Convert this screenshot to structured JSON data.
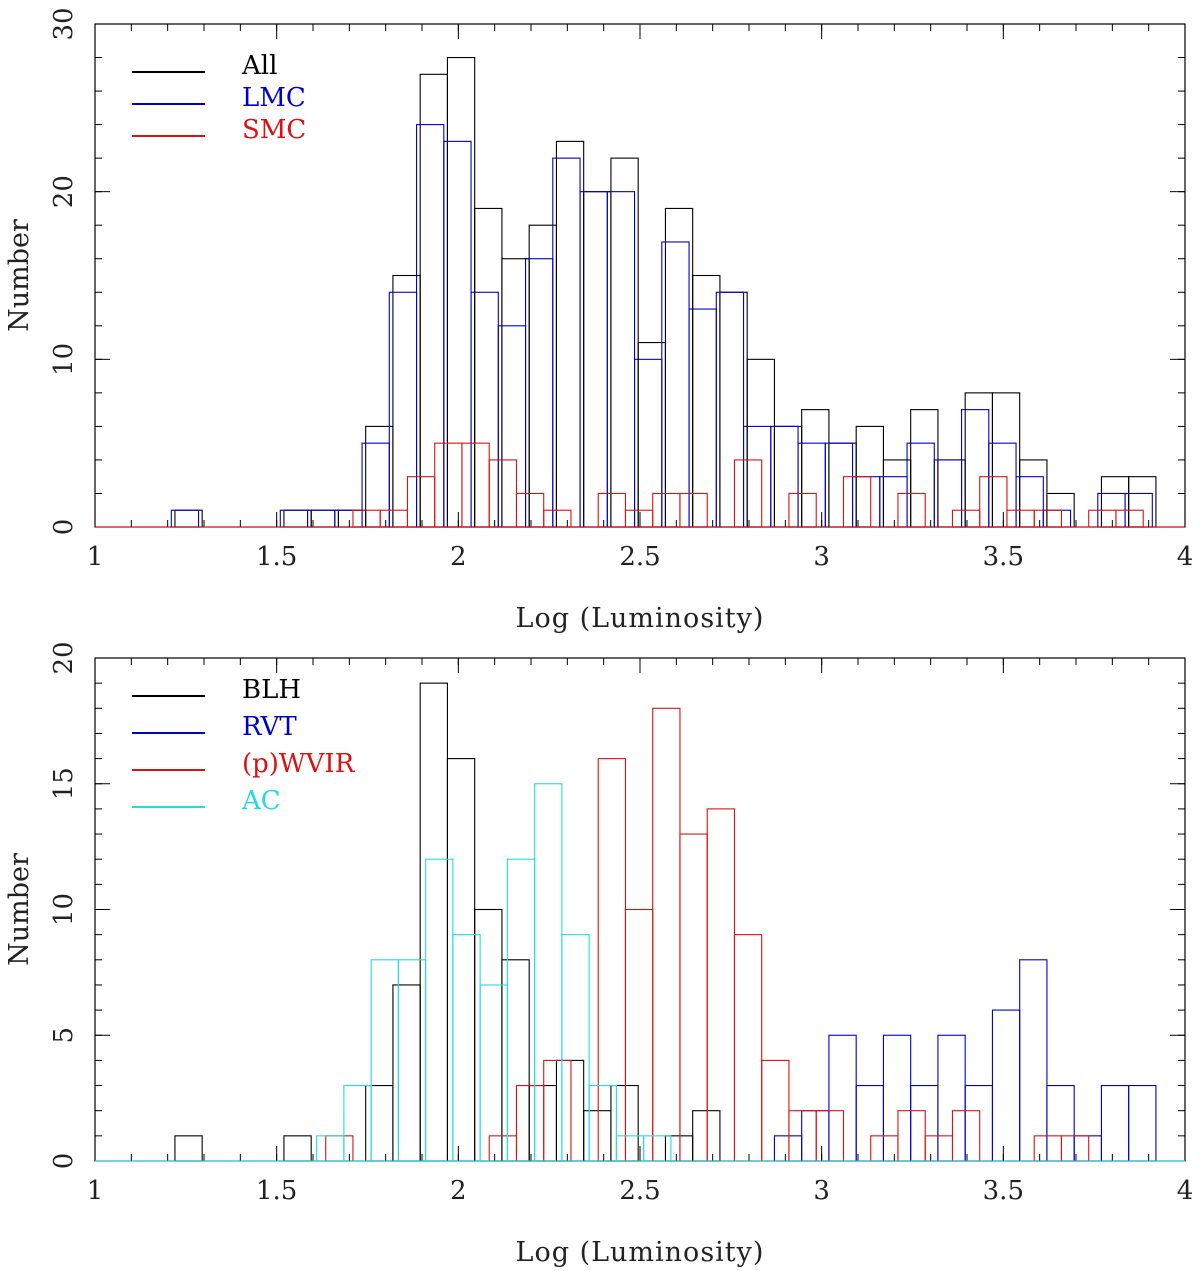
{
  "chart_data": [
    {
      "type": "bar",
      "subtype": "step-histogram",
      "title": "",
      "xlabel": "Log (Luminosity)",
      "ylabel": "Number",
      "xlim": [
        1,
        4
      ],
      "ylim": [
        0,
        30
      ],
      "xticks": [
        1,
        1.5,
        2,
        2.5,
        3,
        3.5,
        4
      ],
      "xtick_labels": [
        "1",
        "1.5",
        "2",
        "2.5",
        "3",
        "3.5",
        "4"
      ],
      "yticks": [
        0,
        10,
        20,
        30
      ],
      "ytick_labels": [
        "0",
        "10",
        "20",
        "30"
      ],
      "legend_position": "top-left",
      "bin_width": 0.075,
      "series": [
        {
          "name": "All",
          "color": "#000000",
          "offset": 0.0,
          "bins": [
            [
              1.22,
              1
            ],
            [
              1.52,
              1
            ],
            [
              1.595,
              1
            ],
            [
              1.67,
              1
            ],
            [
              1.745,
              6
            ],
            [
              1.82,
              15
            ],
            [
              1.895,
              27
            ],
            [
              1.97,
              28
            ],
            [
              2.045,
              19
            ],
            [
              2.12,
              16
            ],
            [
              2.195,
              18
            ],
            [
              2.27,
              23
            ],
            [
              2.345,
              20
            ],
            [
              2.42,
              22
            ],
            [
              2.495,
              11
            ],
            [
              2.57,
              19
            ],
            [
              2.645,
              15
            ],
            [
              2.72,
              14
            ],
            [
              2.795,
              10
            ],
            [
              2.87,
              6
            ],
            [
              2.945,
              7
            ],
            [
              3.02,
              5
            ],
            [
              3.095,
              6
            ],
            [
              3.17,
              4
            ],
            [
              3.245,
              7
            ],
            [
              3.32,
              4
            ],
            [
              3.395,
              8
            ],
            [
              3.47,
              8
            ],
            [
              3.545,
              4
            ],
            [
              3.62,
              2
            ],
            [
              3.77,
              3
            ],
            [
              3.845,
              3
            ]
          ]
        },
        {
          "name": "LMC",
          "color": "#0000cc",
          "offset": -0.01,
          "bins": [
            [
              1.22,
              1
            ],
            [
              1.52,
              1
            ],
            [
              1.595,
              1
            ],
            [
              1.67,
              1
            ],
            [
              1.745,
              5
            ],
            [
              1.82,
              14
            ],
            [
              1.895,
              24
            ],
            [
              1.97,
              23
            ],
            [
              2.045,
              14
            ],
            [
              2.12,
              12
            ],
            [
              2.195,
              16
            ],
            [
              2.27,
              22
            ],
            [
              2.345,
              20
            ],
            [
              2.42,
              20
            ],
            [
              2.495,
              10
            ],
            [
              2.57,
              17
            ],
            [
              2.645,
              13
            ],
            [
              2.72,
              14
            ],
            [
              2.795,
              6
            ],
            [
              2.87,
              6
            ],
            [
              2.945,
              5
            ],
            [
              3.02,
              5
            ],
            [
              3.095,
              3
            ],
            [
              3.17,
              3
            ],
            [
              3.245,
              5
            ],
            [
              3.32,
              4
            ],
            [
              3.395,
              7
            ],
            [
              3.47,
              5
            ],
            [
              3.545,
              3
            ],
            [
              3.62,
              1
            ],
            [
              3.77,
              2
            ],
            [
              3.845,
              2
            ]
          ]
        },
        {
          "name": "SMC",
          "color": "#dd1111",
          "offset": -0.035,
          "bins": [
            [
              1.745,
              1
            ],
            [
              1.82,
              1
            ],
            [
              1.895,
              3
            ],
            [
              1.97,
              5
            ],
            [
              2.045,
              5
            ],
            [
              2.12,
              4
            ],
            [
              2.195,
              2
            ],
            [
              2.27,
              1
            ],
            [
              2.42,
              2
            ],
            [
              2.495,
              1
            ],
            [
              2.57,
              2
            ],
            [
              2.645,
              2
            ],
            [
              2.795,
              4
            ],
            [
              2.945,
              2
            ],
            [
              3.095,
              3
            ],
            [
              3.245,
              2
            ],
            [
              3.395,
              1
            ],
            [
              3.47,
              3
            ],
            [
              3.545,
              1
            ],
            [
              3.62,
              1
            ],
            [
              3.77,
              1
            ],
            [
              3.845,
              1
            ]
          ]
        }
      ]
    },
    {
      "type": "bar",
      "subtype": "step-histogram",
      "title": "",
      "xlabel": "Log (Luminosity)",
      "ylabel": "Number",
      "xlim": [
        1,
        4
      ],
      "ylim": [
        0,
        20
      ],
      "xticks": [
        1,
        1.5,
        2,
        2.5,
        3,
        3.5,
        4
      ],
      "xtick_labels": [
        "1",
        "1.5",
        "2",
        "2.5",
        "3",
        "3.5",
        "4"
      ],
      "yticks": [
        0,
        5,
        10,
        15,
        20
      ],
      "ytick_labels": [
        "0",
        "5",
        "10",
        "15",
        "20"
      ],
      "legend_position": "top-left",
      "bin_width": 0.075,
      "series": [
        {
          "name": "BLH",
          "color": "#000000",
          "offset": 0.0,
          "bins": [
            [
              1.22,
              1
            ],
            [
              1.52,
              1
            ],
            [
              1.745,
              3
            ],
            [
              1.82,
              7
            ],
            [
              1.895,
              19
            ],
            [
              1.97,
              16
            ],
            [
              2.045,
              10
            ],
            [
              2.12,
              8
            ],
            [
              2.195,
              3
            ],
            [
              2.27,
              4
            ],
            [
              2.345,
              2
            ],
            [
              2.42,
              3
            ],
            [
              2.57,
              1
            ],
            [
              2.645,
              2
            ]
          ]
        },
        {
          "name": "RVT",
          "color": "#0000cc",
          "offset": 0.0,
          "bins": [
            [
              2.87,
              1
            ],
            [
              2.945,
              2
            ],
            [
              3.02,
              5
            ],
            [
              3.095,
              3
            ],
            [
              3.17,
              5
            ],
            [
              3.245,
              3
            ],
            [
              3.32,
              5
            ],
            [
              3.395,
              3
            ],
            [
              3.47,
              6
            ],
            [
              3.545,
              8
            ],
            [
              3.62,
              3
            ],
            [
              3.695,
              1
            ],
            [
              3.77,
              3
            ],
            [
              3.845,
              3
            ]
          ]
        },
        {
          "name": "(p)WVIR",
          "color": "#dd1111",
          "offset": -0.035,
          "bins": [
            [
              1.67,
              1
            ],
            [
              2.12,
              1
            ],
            [
              2.195,
              3
            ],
            [
              2.27,
              4
            ],
            [
              2.42,
              16
            ],
            [
              2.495,
              10
            ],
            [
              2.57,
              18
            ],
            [
              2.645,
              13
            ],
            [
              2.72,
              14
            ],
            [
              2.795,
              9
            ],
            [
              2.87,
              4
            ],
            [
              2.945,
              2
            ],
            [
              3.02,
              2
            ],
            [
              3.17,
              1
            ],
            [
              3.245,
              2
            ],
            [
              3.32,
              1
            ],
            [
              3.395,
              2
            ],
            [
              3.62,
              1
            ],
            [
              3.695,
              1
            ]
          ]
        },
        {
          "name": "AC",
          "color": "#22dddd",
          "offset": -0.06,
          "bins": [
            [
              1.67,
              1
            ],
            [
              1.745,
              3
            ],
            [
              1.82,
              8
            ],
            [
              1.895,
              8
            ],
            [
              1.97,
              12
            ],
            [
              2.045,
              9
            ],
            [
              2.12,
              7
            ],
            [
              2.195,
              12
            ],
            [
              2.27,
              15
            ],
            [
              2.345,
              9
            ],
            [
              2.42,
              3
            ],
            [
              2.495,
              1
            ],
            [
              2.57,
              1
            ]
          ]
        }
      ]
    }
  ]
}
